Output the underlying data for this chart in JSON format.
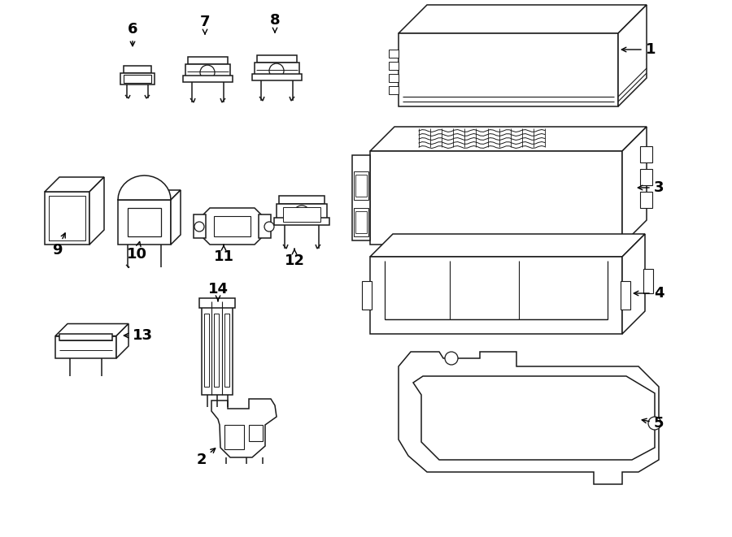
{
  "bg_color": "#ffffff",
  "line_color": "#1a1a1a",
  "lw": 1.1
}
